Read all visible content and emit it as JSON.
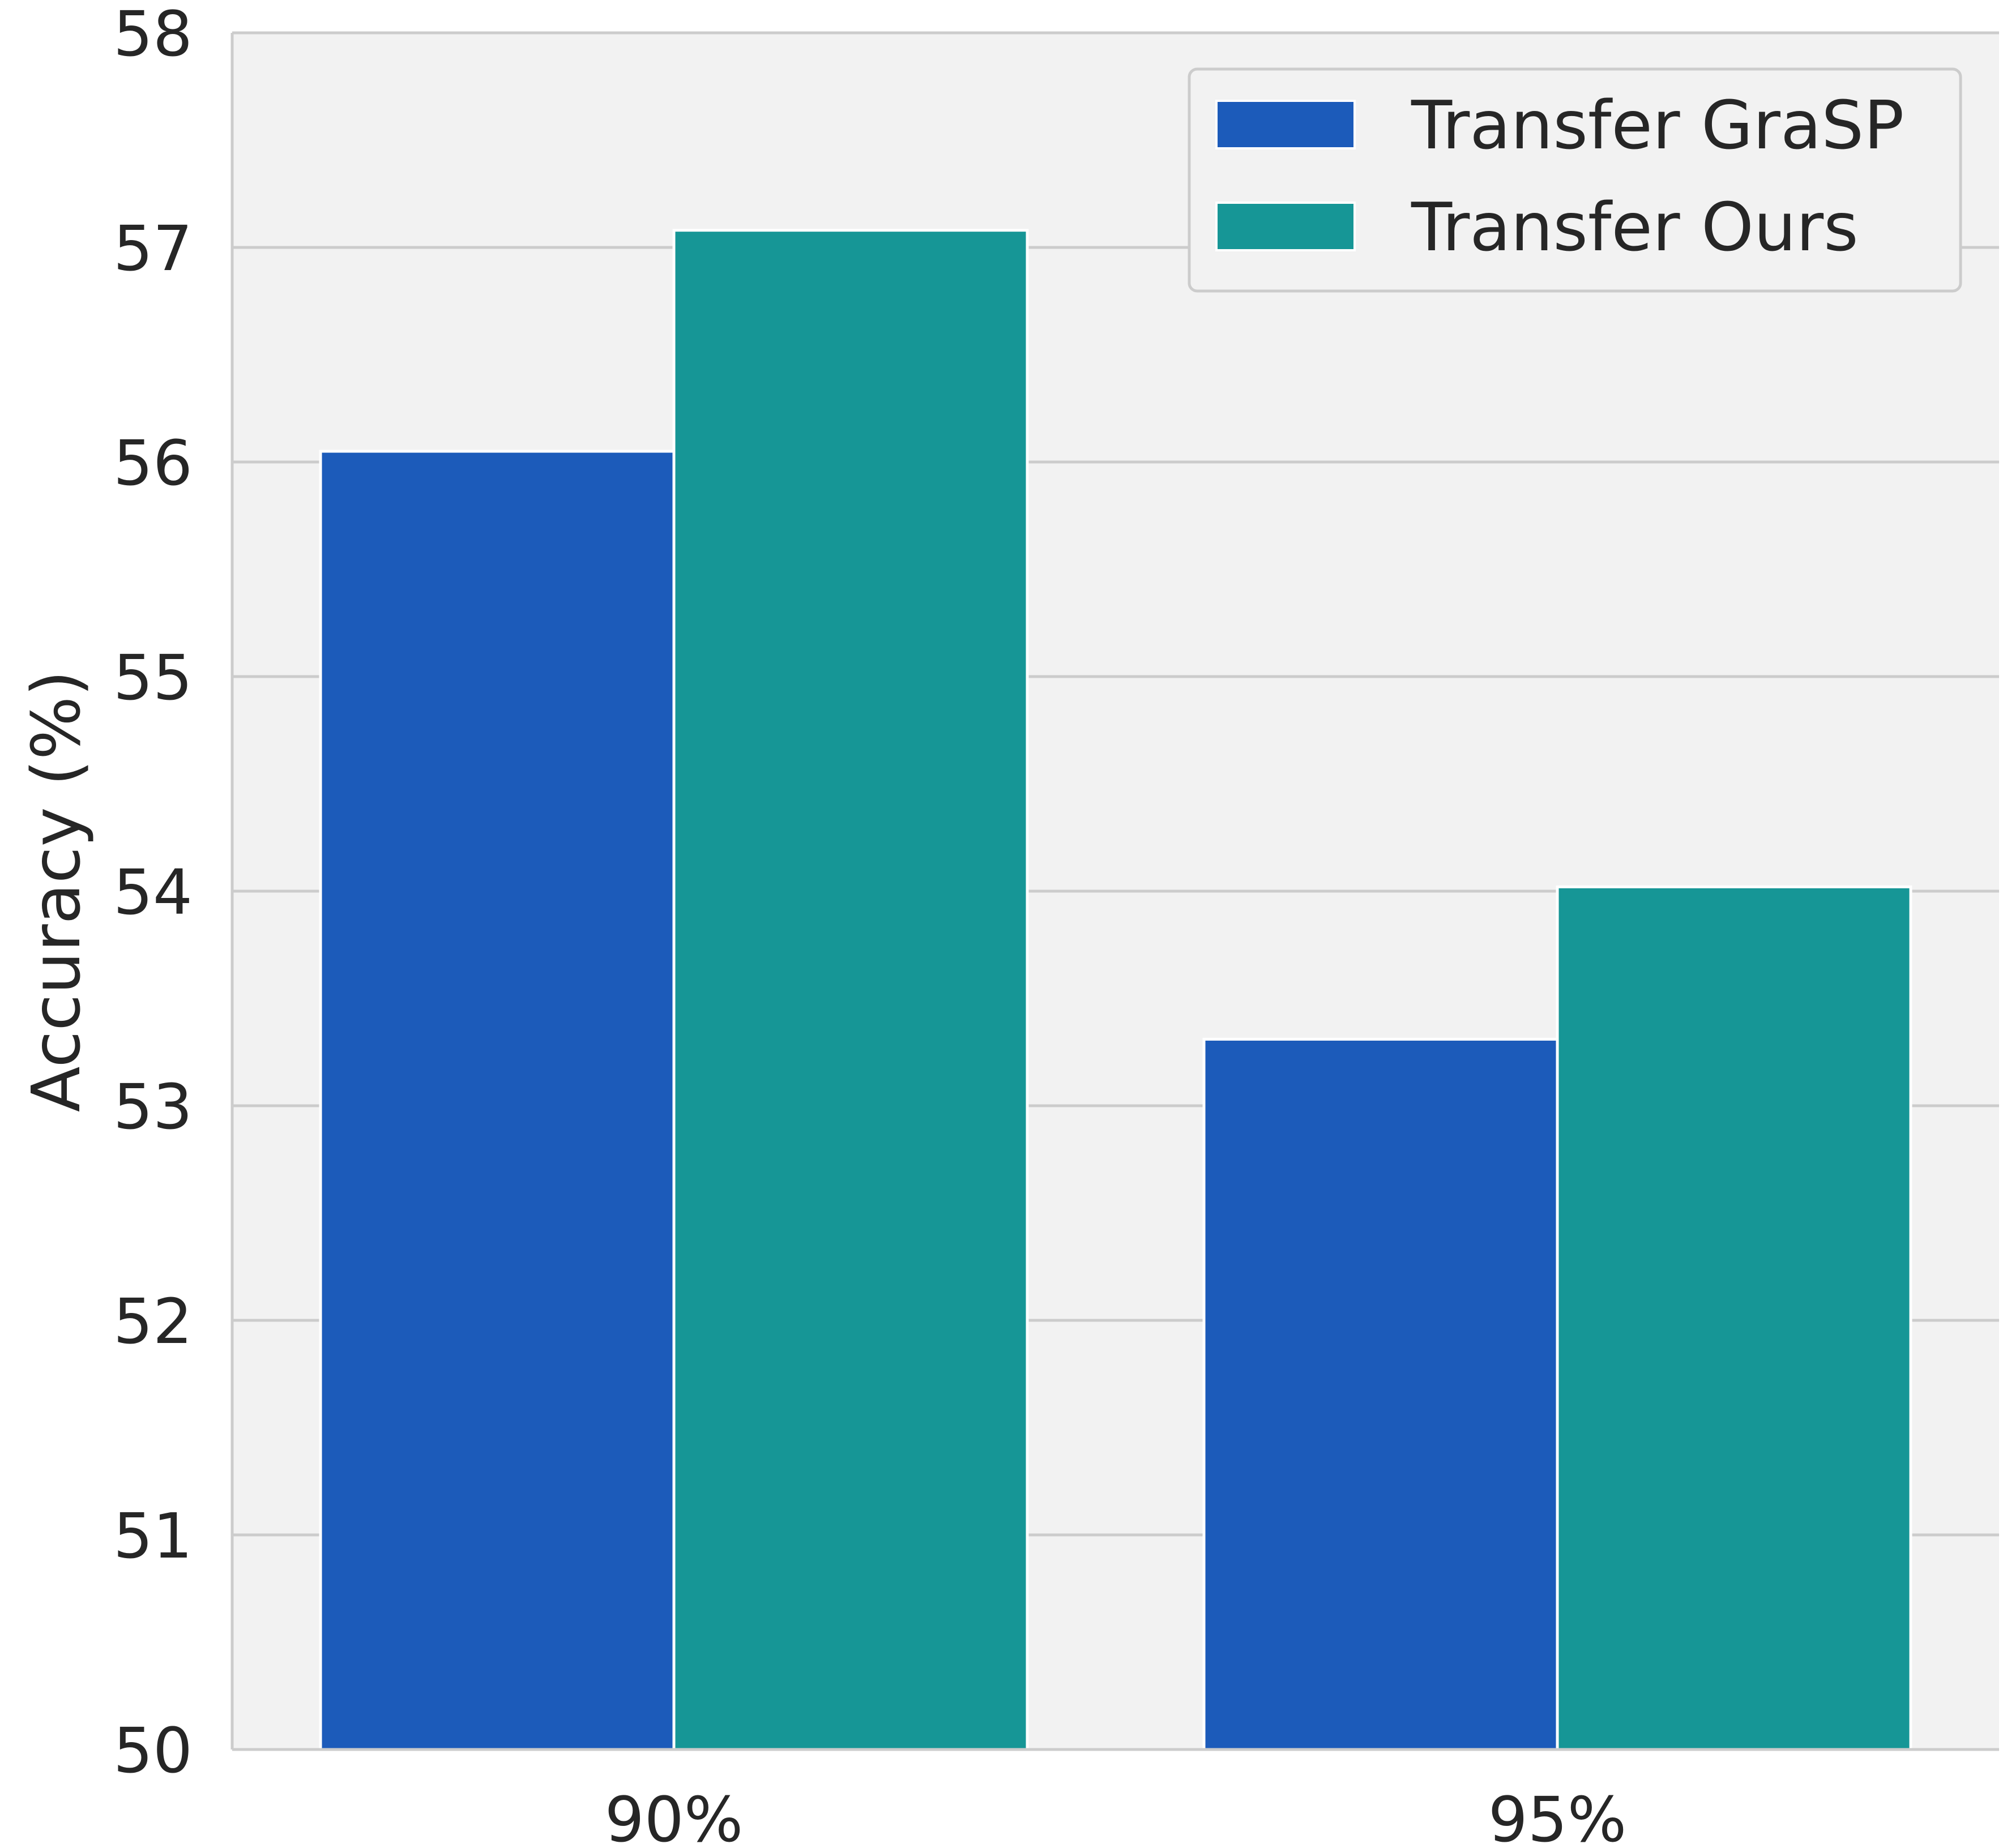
{
  "chart_data": {
    "type": "bar",
    "categories": [
      "90%",
      "95%"
    ],
    "series": [
      {
        "name": "Transfer GraSP",
        "values": [
          56.05,
          53.31
        ],
        "color": "#1c5bba"
      },
      {
        "name": "Transfer Ours",
        "values": [
          57.08,
          54.02
        ],
        "color": "#169696"
      }
    ],
    "ylabel": "Accuracy (%)",
    "ylim": [
      50,
      58
    ],
    "yticks": [
      50,
      51,
      52,
      53,
      54,
      55,
      56,
      57,
      58
    ],
    "grid": true,
    "legend_position": "top-right",
    "colors": {
      "plot_background": "#f2f2f2",
      "gridline": "#cccccc",
      "text": "#262626"
    }
  }
}
